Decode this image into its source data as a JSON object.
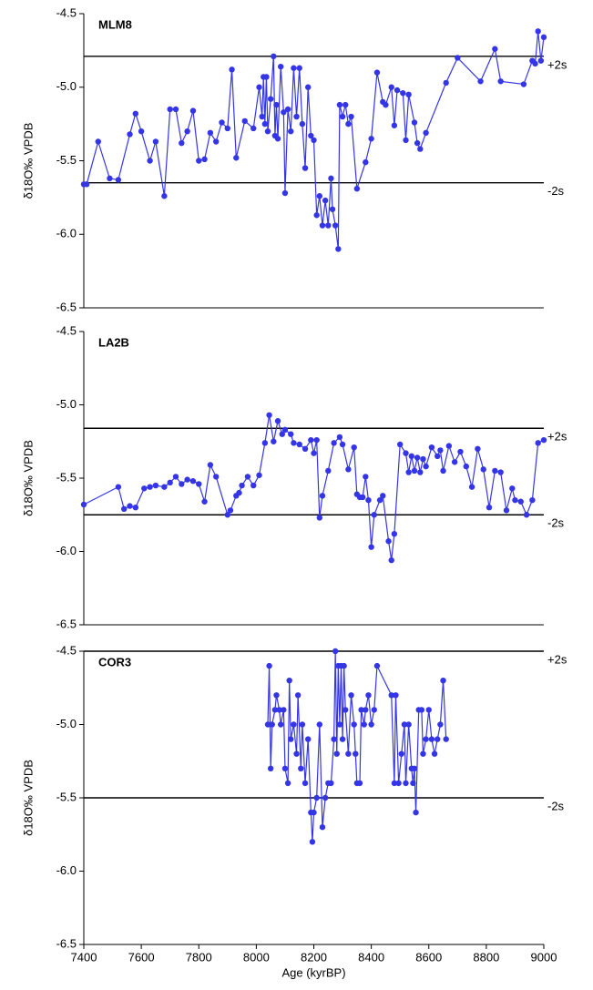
{
  "chart_data": [
    {
      "type": "line",
      "title": "MLM8",
      "ylabel": "δ18O‰ VPDB",
      "color": "#3535e8",
      "xlim": [
        7400,
        9000
      ],
      "ylim": [
        -6.5,
        -4.5
      ],
      "yticks": [
        -6.5,
        {
          "value": -6,
          "label": "-6.0"
        },
        -5.5,
        {
          "value": -5,
          "label": "-5.0"
        },
        -4.5
      ],
      "reference_lines": [
        {
          "label": "+2s",
          "value": -4.79
        },
        {
          "label": "-2s",
          "value": -5.65
        }
      ],
      "x": [
        7400,
        7410,
        7450,
        7490,
        7520,
        7560,
        7580,
        7600,
        7630,
        7650,
        7680,
        7700,
        7720,
        7740,
        7760,
        7780,
        7800,
        7820,
        7840,
        7860,
        7880,
        7900,
        7915,
        7930,
        7960,
        7990,
        8010,
        8020,
        8025,
        8030,
        8035,
        8040,
        8050,
        8060,
        8065,
        8070,
        8075,
        8085,
        8095,
        8100,
        8110,
        8120,
        8130,
        8140,
        8150,
        8160,
        8170,
        8180,
        8190,
        8200,
        8210,
        8220,
        8230,
        8240,
        8250,
        8260,
        8265,
        8275,
        8285,
        8290,
        8300,
        8310,
        8320,
        8330,
        8350,
        8380,
        8400,
        8420,
        8440,
        8450,
        8470,
        8480,
        8490,
        8510,
        8520,
        8530,
        8550,
        8560,
        8570,
        8590,
        8660,
        8700,
        8780,
        8830,
        8850,
        8930,
        8960,
        8970,
        8980,
        8990,
        9000
      ],
      "values": [
        -5.66,
        -5.66,
        -5.37,
        -5.62,
        -5.63,
        -5.32,
        -5.18,
        -5.3,
        -5.5,
        -5.37,
        -5.74,
        -5.15,
        -5.15,
        -5.38,
        -5.3,
        -5.16,
        -5.5,
        -5.49,
        -5.31,
        -5.37,
        -5.24,
        -5.28,
        -4.88,
        -5.48,
        -5.23,
        -5.28,
        -5.0,
        -5.2,
        -4.93,
        -5.25,
        -4.93,
        -5.3,
        -5.08,
        -4.79,
        -5.33,
        -5.12,
        -5.35,
        -4.86,
        -5.17,
        -5.72,
        -5.15,
        -5.3,
        -4.87,
        -5.2,
        -4.87,
        -5.25,
        -5.55,
        -5.0,
        -5.33,
        -5.36,
        -5.87,
        -5.74,
        -5.94,
        -5.77,
        -5.94,
        -5.62,
        -5.83,
        -5.94,
        -6.1,
        -5.12,
        -5.2,
        -5.12,
        -5.25,
        -5.2,
        -5.69,
        -5.51,
        -5.35,
        -4.9,
        -5.1,
        -5.12,
        -5.0,
        -5.26,
        -5.02,
        -5.04,
        -5.36,
        -5.05,
        -5.24,
        -5.38,
        -5.42,
        -5.31,
        -4.97,
        -4.8,
        -4.96,
        -4.74,
        -4.96,
        -4.98,
        -4.82,
        -4.84,
        -4.62,
        -4.82,
        -4.66
      ]
    },
    {
      "type": "line",
      "title": "LA2B",
      "ylabel": "δ18O‰ VPDB",
      "color": "#3535e8",
      "xlim": [
        7400,
        9000
      ],
      "ylim": [
        -6.5,
        -4.5
      ],
      "yticks": [
        -6.5,
        {
          "value": -6,
          "label": "-6.0"
        },
        -5.5,
        {
          "value": -5,
          "label": "-5.0"
        },
        -4.5
      ],
      "reference_lines": [
        {
          "label": "+2s",
          "value": -5.16
        },
        {
          "label": "-2s",
          "value": -5.75
        }
      ],
      "x": [
        7400,
        7520,
        7540,
        7560,
        7580,
        7610,
        7630,
        7650,
        7680,
        7700,
        7720,
        7740,
        7760,
        7780,
        7800,
        7820,
        7840,
        7860,
        7900,
        7910,
        7930,
        7940,
        7950,
        7970,
        7990,
        8010,
        8030,
        8045,
        8060,
        8075,
        8090,
        8100,
        8120,
        8130,
        8150,
        8170,
        8190,
        8200,
        8210,
        8220,
        8230,
        8250,
        8270,
        8290,
        8300,
        8320,
        8340,
        8350,
        8360,
        8370,
        8380,
        8390,
        8400,
        8410,
        8430,
        8440,
        8460,
        8470,
        8480,
        8500,
        8520,
        8530,
        8540,
        8550,
        8560,
        8570,
        8580,
        8590,
        8610,
        8630,
        8640,
        8650,
        8670,
        8690,
        8710,
        8730,
        8750,
        8770,
        8790,
        8810,
        8830,
        8850,
        8870,
        8890,
        8900,
        8920,
        8940,
        8960,
        8980,
        9000
      ],
      "values": [
        -5.68,
        -5.56,
        -5.71,
        -5.69,
        -5.7,
        -5.57,
        -5.56,
        -5.55,
        -5.56,
        -5.53,
        -5.49,
        -5.54,
        -5.51,
        -5.52,
        -5.54,
        -5.66,
        -5.41,
        -5.49,
        -5.75,
        -5.72,
        -5.62,
        -5.6,
        -5.55,
        -5.49,
        -5.55,
        -5.48,
        -5.26,
        -5.07,
        -5.25,
        -5.11,
        -5.2,
        -5.17,
        -5.2,
        -5.26,
        -5.27,
        -5.3,
        -5.24,
        -5.33,
        -5.24,
        -5.77,
        -5.62,
        -5.45,
        -5.26,
        -5.22,
        -5.27,
        -5.44,
        -5.29,
        -5.61,
        -5.63,
        -5.63,
        -5.49,
        -5.65,
        -5.97,
        -5.75,
        -5.65,
        -5.62,
        -5.93,
        -6.06,
        -5.88,
        -5.27,
        -5.33,
        -5.46,
        -5.35,
        -5.45,
        -5.36,
        -5.46,
        -5.37,
        -5.42,
        -5.29,
        -5.35,
        -5.31,
        -5.45,
        -5.28,
        -5.39,
        -5.32,
        -5.42,
        -5.56,
        -5.3,
        -5.44,
        -5.7,
        -5.45,
        -5.46,
        -5.72,
        -5.57,
        -5.65,
        -5.66,
        -5.75,
        -5.65,
        -5.26,
        -5.24
      ]
    },
    {
      "type": "line",
      "title": "COR3",
      "ylabel": "δ18O‰ VPDB",
      "xlabel": "Age (kyrBP)",
      "color": "#3535e8",
      "xlim": [
        7400,
        9000
      ],
      "ylim": [
        -6.5,
        -4.5
      ],
      "xticks": [
        7400,
        7600,
        7800,
        8000,
        8200,
        8400,
        8600,
        8800,
        9000
      ],
      "yticks": [
        -6.5,
        {
          "value": -6,
          "label": "-6.0"
        },
        -5.5,
        {
          "value": -5,
          "label": "-5.0"
        },
        -4.5
      ],
      "reference_lines": [
        {
          "label": "+2s",
          "value": -4.5
        },
        {
          "label": "-2s",
          "value": -5.5
        }
      ],
      "x": [
        8040,
        8045,
        8050,
        8055,
        8065,
        8070,
        8080,
        8085,
        8095,
        8100,
        8110,
        8115,
        8120,
        8130,
        8140,
        8145,
        8155,
        8160,
        8170,
        8180,
        8190,
        8195,
        8200,
        8210,
        8220,
        8230,
        8240,
        8250,
        8260,
        8270,
        8275,
        8280,
        8285,
        8290,
        8295,
        8300,
        8305,
        8310,
        8320,
        8330,
        8340,
        8345,
        8350,
        8360,
        8365,
        8375,
        8380,
        8390,
        8400,
        8410,
        8420,
        8470,
        8480,
        8485,
        8495,
        8505,
        8515,
        8520,
        8530,
        8540,
        8545,
        8550,
        8555,
        8565,
        8575,
        8580,
        8590,
        8600,
        8610,
        8620,
        8630,
        8640,
        8650,
        8660
      ],
      "values": [
        -5.0,
        -4.6,
        -5.3,
        -5.0,
        -4.9,
        -4.8,
        -4.9,
        -5.0,
        -4.9,
        -5.3,
        -5.4,
        -4.7,
        -5.1,
        -5.0,
        -5.2,
        -4.8,
        -5.3,
        -5.0,
        -5.4,
        -5.1,
        -5.6,
        -5.8,
        -5.6,
        -5.5,
        -5.0,
        -5.7,
        -5.5,
        -5.4,
        -5.4,
        -5.1,
        -4.5,
        -5.2,
        -4.6,
        -5.0,
        -4.6,
        -5.1,
        -4.6,
        -4.9,
        -5.2,
        -4.8,
        -5.0,
        -5.2,
        -5.4,
        -5.4,
        -4.9,
        -5.0,
        -4.9,
        -4.8,
        -5.0,
        -4.9,
        -4.6,
        -4.8,
        -5.4,
        -4.8,
        -5.4,
        -5.2,
        -5.0,
        -5.4,
        -5.0,
        -5.3,
        -5.4,
        -5.3,
        -5.6,
        -4.9,
        -4.9,
        -5.2,
        -5.1,
        -4.9,
        -5.1,
        -5.2,
        -5.1,
        -5.0,
        -4.7,
        -5.1
      ]
    }
  ]
}
